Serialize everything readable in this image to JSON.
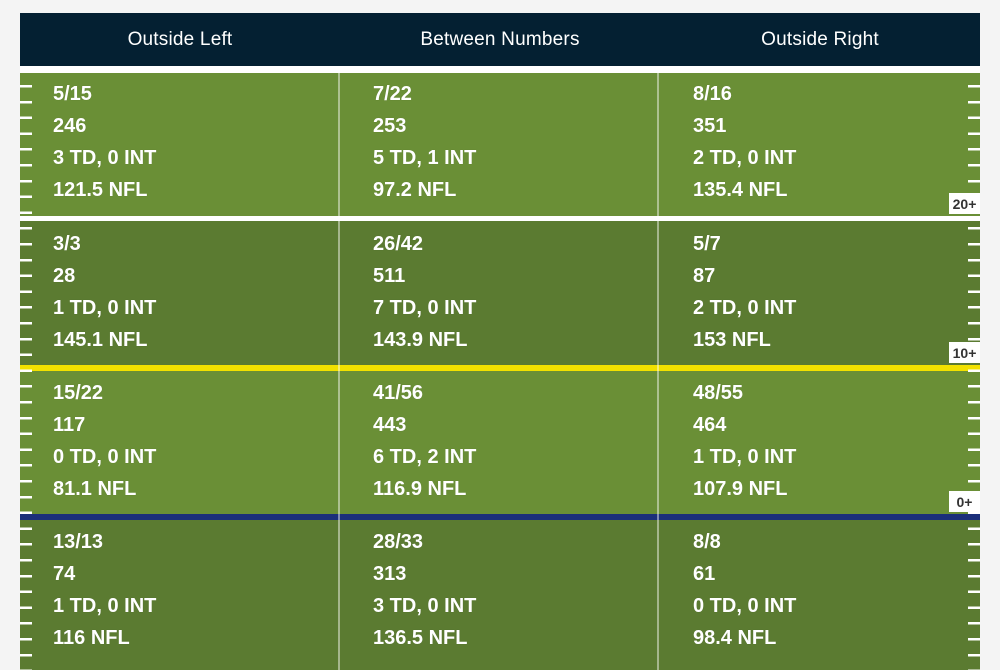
{
  "header": {
    "columns": [
      "Outside Left",
      "Between Numbers",
      "Outside Right"
    ]
  },
  "zones": [
    {
      "yard_label": "20+",
      "cells": [
        {
          "comp": "5/15",
          "yards": "246",
          "td_int": "3 TD, 0 INT",
          "rating": "121.5 NFL"
        },
        {
          "comp": "7/22",
          "yards": "253",
          "td_int": "5 TD, 1 INT",
          "rating": "97.2 NFL"
        },
        {
          "comp": "8/16",
          "yards": "351",
          "td_int": "2 TD, 0 INT",
          "rating": "135.4 NFL"
        }
      ]
    },
    {
      "yard_label": "10+",
      "cells": [
        {
          "comp": "3/3",
          "yards": "28",
          "td_int": "1 TD, 0 INT",
          "rating": "145.1 NFL"
        },
        {
          "comp": "26/42",
          "yards": "511",
          "td_int": "7 TD, 0 INT",
          "rating": "143.9 NFL"
        },
        {
          "comp": "5/7",
          "yards": "87",
          "td_int": "2 TD, 0 INT",
          "rating": "153 NFL"
        }
      ]
    },
    {
      "yard_label": "0+",
      "cells": [
        {
          "comp": "15/22",
          "yards": "117",
          "td_int": "0 TD, 0 INT",
          "rating": "81.1 NFL"
        },
        {
          "comp": "41/56",
          "yards": "443",
          "td_int": "6 TD, 2 INT",
          "rating": "116.9 NFL"
        },
        {
          "comp": "48/55",
          "yards": "464",
          "td_int": "1 TD, 0 INT",
          "rating": "107.9 NFL"
        }
      ]
    },
    {
      "yard_label": "",
      "cells": [
        {
          "comp": "13/13",
          "yards": "74",
          "td_int": "1 TD, 0 INT",
          "rating": "116 NFL"
        },
        {
          "comp": "28/33",
          "yards": "313",
          "td_int": "3 TD, 0 INT",
          "rating": "136.5 NFL"
        },
        {
          "comp": "8/8",
          "yards": "61",
          "td_int": "0 TD, 0 INT",
          "rating": "98.4 NFL"
        }
      ]
    }
  ],
  "colors": {
    "header_bg": "#042032",
    "field_light": "#6a8f36",
    "field_dark": "#5b7b31",
    "line_white": "#ffffff",
    "line_yellow": "#f2e100",
    "line_navy": "#1b2f7a"
  }
}
